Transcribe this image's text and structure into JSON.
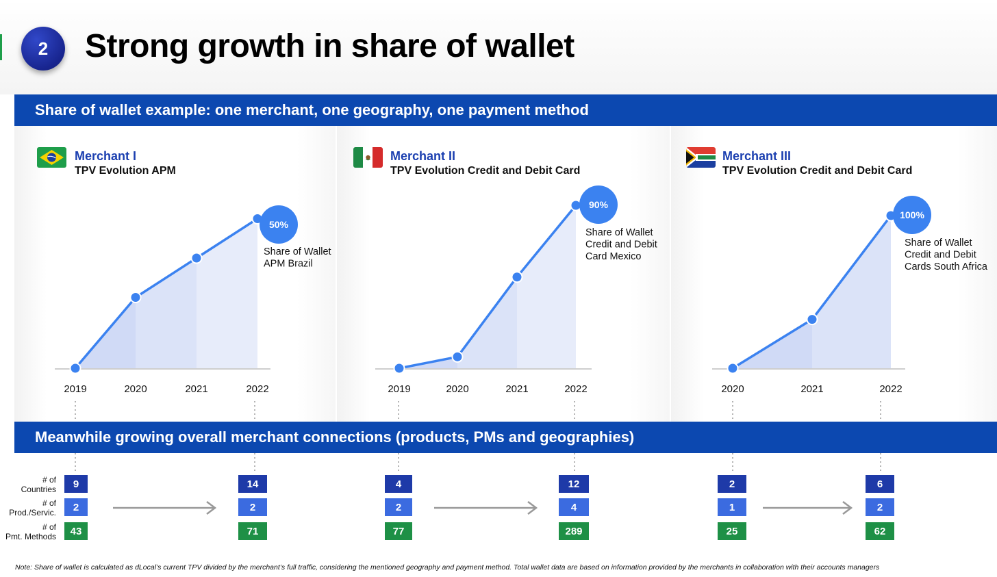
{
  "slide": {
    "number": "2",
    "title": "Strong growth in share of wallet",
    "banner_top": "Share of wallet example: one merchant, one geography, one payment method",
    "banner_bottom": "Meanwhile growing overall merchant connections (products, PMs and geographies)",
    "footnote": "Note: Share of wallet is calculated as dLocal’s current TPV divided by the merchant’s full traffic, considering the mentioned geography and payment method. Total wallet data are based on information provided by the merchants in collaboration with their accounts managers"
  },
  "colors": {
    "line": "#3b82f0",
    "badge": "#3b82f0",
    "banner": "#0c48b0",
    "countries": "#1e3aa8",
    "products": "#3b6be0",
    "pm": "#1e9046"
  },
  "metric_labels": {
    "countries": "# of\nCountries",
    "products": "# of\nProd./Servic.",
    "pm": "# of\nPmt. Methods"
  },
  "merchants": [
    {
      "name": "Merchant I",
      "subtitle": "TPV Evolution APM",
      "flag": "brazil-flag",
      "share_label": "50%",
      "share_caption": "Share of Wallet\nAPM Brazil",
      "metrics": {
        "countries": [
          "9",
          "14"
        ],
        "products": [
          "2",
          "2"
        ],
        "pm": [
          "43",
          "71"
        ]
      }
    },
    {
      "name": "Merchant II",
      "subtitle": "TPV Evolution Credit and Debit Card",
      "flag": "mexico-flag",
      "share_label": "90%",
      "share_caption": "Share of Wallet\nCredit and Debit\nCard Mexico",
      "metrics": {
        "countries": [
          "4",
          "12"
        ],
        "products": [
          "2",
          "4"
        ],
        "pm": [
          "77",
          "289"
        ]
      }
    },
    {
      "name": "Merchant III",
      "subtitle": "TPV Evolution Credit and Debit Card",
      "flag": "south-africa-flag",
      "share_label": "100%",
      "share_caption": "Share of Wallet\nCredit and Debit\nCards South Africa",
      "metrics": {
        "countries": [
          "2",
          "6"
        ],
        "products": [
          "1",
          "2"
        ],
        "pm": [
          "25",
          "62"
        ]
      }
    }
  ],
  "chart_data": [
    {
      "type": "area",
      "title": "Merchant I – TPV Evolution APM",
      "categories": [
        "2019",
        "2020",
        "2021",
        "2022"
      ],
      "values": [
        0,
        45,
        70,
        95
      ],
      "ylim": [
        0,
        100
      ],
      "xlabel": "",
      "ylabel": "",
      "annotation": "50%"
    },
    {
      "type": "area",
      "title": "Merchant II – TPV Evolution Credit and Debit Card",
      "categories": [
        "2019",
        "2020",
        "2021",
        "2022"
      ],
      "values": [
        0,
        7,
        56,
        100
      ],
      "ylim": [
        0,
        100
      ],
      "xlabel": "",
      "ylabel": "",
      "annotation": "90%"
    },
    {
      "type": "area",
      "title": "Merchant III – TPV Evolution Credit and Debit Card",
      "categories": [
        "2020",
        "2021",
        "2022"
      ],
      "values": [
        0,
        32,
        100
      ],
      "ylim": [
        0,
        100
      ],
      "xlabel": "",
      "ylabel": "",
      "annotation": "100%"
    }
  ]
}
